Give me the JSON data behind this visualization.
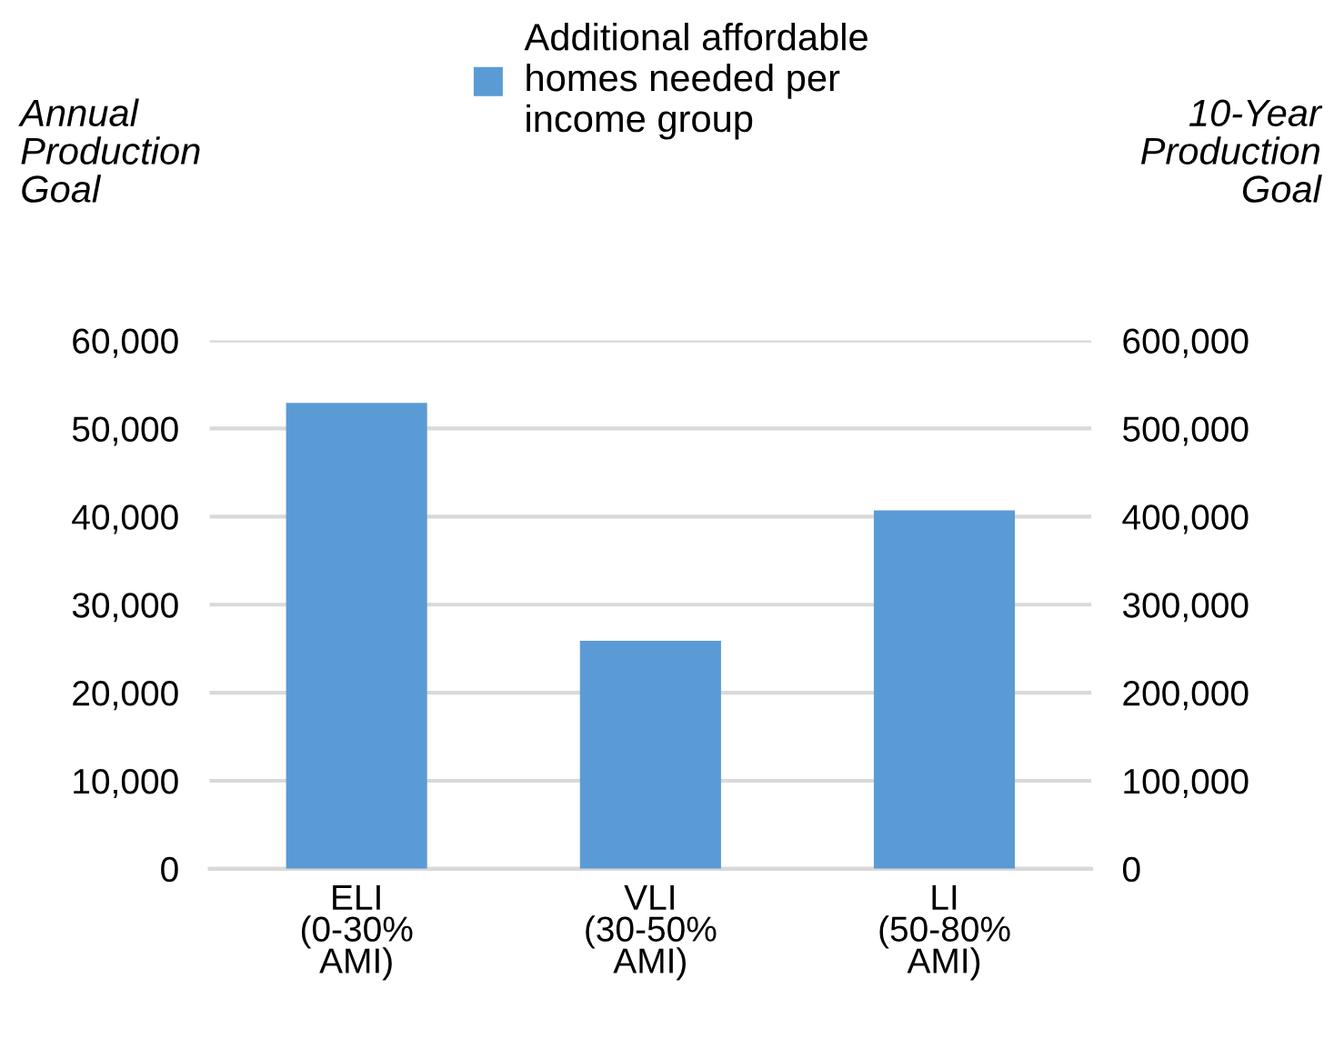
{
  "chart_data": {
    "type": "bar",
    "categories": [
      "ELI\n(0-30%\nAMI)",
      "VLI\n(30-50%\nAMI)",
      "LI\n(50-80%\nAMI)"
    ],
    "series": [
      {
        "name": "Additional affordable\nhomes needed per\nincome group",
        "color": "#5b9bd5",
        "values": [
          52900,
          25900,
          40700
        ]
      }
    ],
    "ylabel": "Annual\nProduction\nGoal",
    "y2label": "10-Year\nProduction\nGoal",
    "ylim": [
      0,
      60000
    ],
    "yticks": [
      {
        "value": 0,
        "label": "0"
      },
      {
        "value": 10000,
        "label": "10,000"
      },
      {
        "value": 20000,
        "label": "20,000"
      },
      {
        "value": 30000,
        "label": "30,000"
      },
      {
        "value": 40000,
        "label": "40,000"
      },
      {
        "value": 50000,
        "label": "50,000"
      },
      {
        "value": 60000,
        "label": "60,000"
      }
    ],
    "y2lim": [
      0,
      600000
    ],
    "y2ticks": [
      {
        "value": 0,
        "label": "0"
      },
      {
        "value": 100000,
        "label": "100,000"
      },
      {
        "value": 200000,
        "label": "200,000"
      },
      {
        "value": 300000,
        "label": "300,000"
      },
      {
        "value": 400000,
        "label": "400,000"
      },
      {
        "value": 500000,
        "label": "500,000"
      },
      {
        "value": 600000,
        "label": "600,000"
      }
    ],
    "grid": "y",
    "legend": "top"
  }
}
